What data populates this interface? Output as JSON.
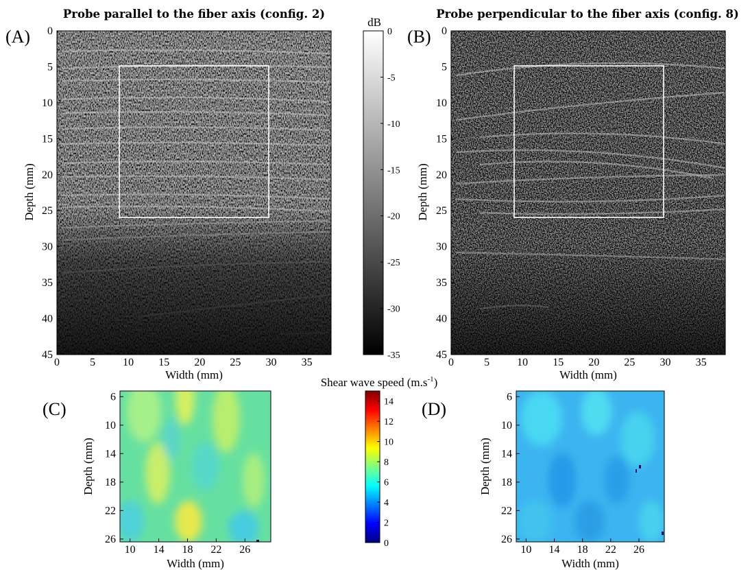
{
  "figure": {
    "panel_A": {
      "label": "(A)",
      "title": "Probe parallel to the fiber axis (config. 2)",
      "xlabel": "Width (mm)",
      "ylabel": "Depth (mm)",
      "xticks": [
        "0",
        "5",
        "10",
        "15",
        "20",
        "25",
        "30",
        "35"
      ],
      "yticks": [
        "0",
        "5",
        "10",
        "15",
        "20",
        "25",
        "30",
        "35",
        "40",
        "45"
      ]
    },
    "panel_B": {
      "label": "(B)",
      "title": "Probe perpendicular to the fiber axis (config. 8)",
      "xlabel": "Width (mm)",
      "ylabel": "Depth (mm)",
      "xticks": [
        "0",
        "5",
        "10",
        "15",
        "20",
        "25",
        "30",
        "35"
      ],
      "yticks": [
        "0",
        "5",
        "10",
        "15",
        "20",
        "25",
        "30",
        "35",
        "40",
        "45"
      ]
    },
    "colorbar_db": {
      "label": "dB",
      "ticks": [
        "0",
        "-5",
        "-10",
        "-15",
        "-20",
        "-25",
        "-30",
        "-35"
      ]
    },
    "panel_C": {
      "label": "(C)",
      "xlabel": "Width (mm)",
      "ylabel": "Depth (mm)",
      "xticks": [
        "10",
        "14",
        "18",
        "22",
        "26"
      ],
      "yticks": [
        "6",
        "10",
        "14",
        "18",
        "22",
        "26"
      ]
    },
    "panel_D": {
      "label": "(D)",
      "xlabel": "Width (mm)",
      "ylabel": "Depth (mm)",
      "xticks": [
        "10",
        "14",
        "18",
        "22",
        "26"
      ],
      "yticks": [
        "6",
        "10",
        "14",
        "18",
        "22",
        "26"
      ]
    },
    "colorbar_speed": {
      "label_main": "Shear wave speed (m.s",
      "label_sup": "-1",
      "label_end": ")",
      "ticks": [
        "14",
        "12",
        "10",
        "8",
        "6",
        "4",
        "2",
        "0"
      ]
    }
  }
}
